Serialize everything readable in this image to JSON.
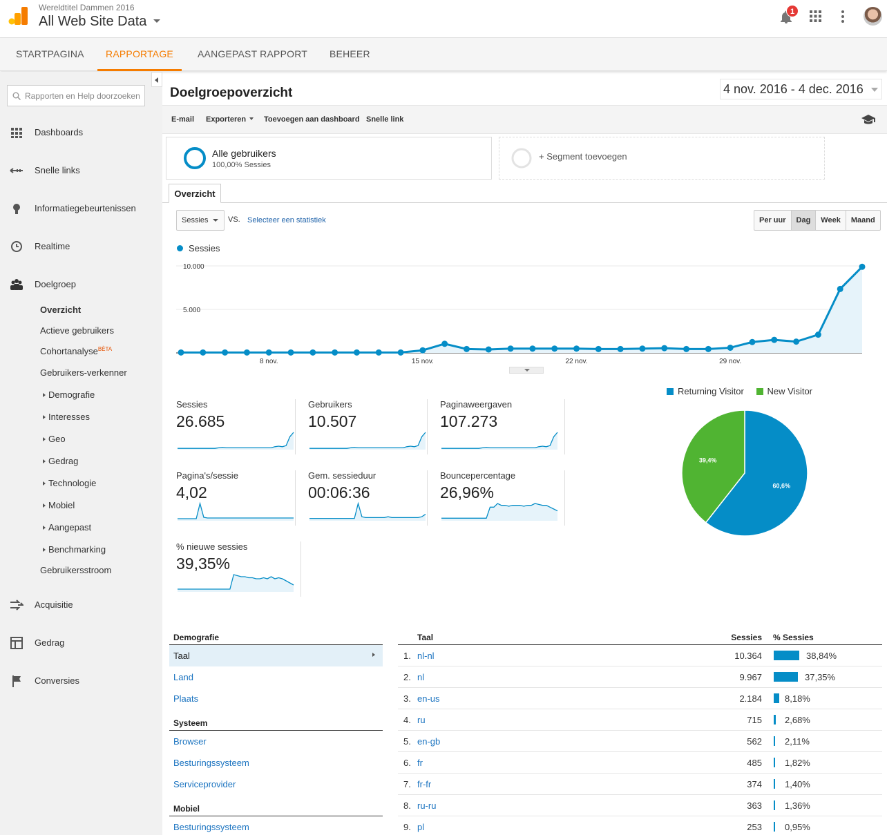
{
  "header": {
    "account": "Wereldtitel Dammen 2016",
    "property": "All Web Site Data",
    "notification_count": "1"
  },
  "nav": {
    "tabs": [
      {
        "label": "STARTPAGINA"
      },
      {
        "label": "RAPPORTAGE"
      },
      {
        "label": "AANGEPAST RAPPORT"
      },
      {
        "label": "BEHEER"
      }
    ],
    "active": "RAPPORTAGE"
  },
  "sidebar": {
    "search_placeholder": "Rapporten en Help doorzoeken",
    "items": [
      {
        "label": "Dashboards"
      },
      {
        "label": "Snelle links"
      },
      {
        "label": "Informatiegebeurtenissen"
      },
      {
        "label": "Realtime"
      },
      {
        "label": "Doelgroep"
      },
      {
        "label": "Acquisitie"
      },
      {
        "label": "Gedrag"
      },
      {
        "label": "Conversies"
      }
    ],
    "sub": {
      "overzicht": "Overzicht",
      "actieve": "Actieve gebruikers",
      "cohort": "Cohortanalyse",
      "beta": "BÈTA",
      "verkenner": "Gebruikers-verkenner",
      "demografie": "Demografie",
      "interesses": "Interesses",
      "geo": "Geo",
      "gedrag": "Gedrag",
      "technologie": "Technologie",
      "mobiel": "Mobiel",
      "aangepast": "Aangepast",
      "benchmarking": "Benchmarking",
      "stroom": "Gebruikersstroom"
    }
  },
  "main": {
    "title": "Doelgroepoverzicht",
    "date_range": "4 nov. 2016 - 4 dec. 2016",
    "toolbar": {
      "email": "E-mail",
      "export": "Exporteren",
      "dashboard": "Toevoegen aan dashboard",
      "link": "Snelle link"
    },
    "segment": {
      "name": "Alle gebruikers",
      "sub": "100,00% Sessies",
      "add": "+ Segment toevoegen"
    },
    "tab": "Overzicht",
    "metric_select": "Sessies",
    "vs": "VS.",
    "select_stat": "Selecteer een statistiek",
    "granularity": [
      "Per uur",
      "Dag",
      "Week",
      "Maand"
    ],
    "granularity_active": "Dag"
  },
  "chart_data": [
    {
      "type": "line",
      "series": [
        {
          "name": "Sessies",
          "values": [
            50,
            50,
            50,
            50,
            50,
            50,
            50,
            50,
            50,
            50,
            50,
            300,
            1050,
            450,
            400,
            500,
            500,
            500,
            500,
            450,
            450,
            500,
            550,
            450,
            450,
            600,
            1250,
            1500,
            1300,
            2100,
            7350,
            9900
          ]
        }
      ],
      "x": [
        "4 nov.",
        "5 nov.",
        "6 nov.",
        "7 nov.",
        "8 nov.",
        "9 nov.",
        "10 nov.",
        "11 nov.",
        "12 nov.",
        "13 nov.",
        "14 nov.",
        "15 nov.",
        "16 nov.",
        "17 nov.",
        "18 nov.",
        "19 nov.",
        "20 nov.",
        "21 nov.",
        "22 nov.",
        "23 nov.",
        "24 nov.",
        "25 nov.",
        "26 nov.",
        "27 nov.",
        "28 nov.",
        "29 nov.",
        "30 nov.",
        "1 dec.",
        "2 dec.",
        "3 dec.",
        "4 dec.",
        "5 dec."
      ],
      "x_ticks": [
        "8 nov.",
        "15 nov.",
        "22 nov.",
        "29 nov."
      ],
      "y_ticks": [
        "10.000",
        "5.000"
      ],
      "ylim": [
        0,
        10000
      ],
      "color": "#058dc7"
    },
    {
      "type": "pie",
      "categories": [
        "Returning Visitor",
        "New Visitor"
      ],
      "values": [
        60.6,
        39.4
      ],
      "labels": [
        "60,6%",
        "39,4%"
      ],
      "colors": [
        "#058dc7",
        "#50b432"
      ]
    }
  ],
  "scorecards": [
    {
      "label": "Sessies",
      "value": "26.685",
      "spark": [
        1,
        1,
        1,
        1,
        1,
        1,
        1,
        1,
        1,
        1,
        1,
        2,
        3,
        2,
        2,
        2,
        2,
        2,
        2,
        2,
        2,
        2,
        2,
        2,
        2,
        2,
        4,
        5,
        4,
        6,
        22,
        30
      ]
    },
    {
      "label": "Gebruikers",
      "value": "10.507",
      "spark": [
        1,
        1,
        1,
        1,
        1,
        1,
        1,
        1,
        1,
        1,
        1,
        2,
        3,
        2,
        2,
        2,
        2,
        2,
        2,
        2,
        2,
        2,
        2,
        2,
        2,
        2,
        4,
        5,
        4,
        6,
        22,
        30
      ]
    },
    {
      "label": "Paginaweergaven",
      "value": "107.273",
      "spark": [
        1,
        1,
        1,
        1,
        1,
        1,
        1,
        1,
        1,
        1,
        1,
        2,
        3,
        2,
        2,
        2,
        2,
        2,
        2,
        2,
        2,
        2,
        2,
        2,
        2,
        2,
        4,
        5,
        4,
        6,
        22,
        30
      ]
    },
    {
      "label": "Pagina's/sessie",
      "value": "4,02",
      "spark": [
        2,
        2,
        2,
        2,
        2,
        2,
        24,
        4,
        3,
        3,
        3,
        3,
        3,
        3,
        3,
        3,
        3,
        3,
        3,
        3,
        3,
        3,
        3,
        3,
        3,
        3,
        3,
        3,
        3,
        3,
        3,
        3
      ]
    },
    {
      "label": "Gem. sessieduur",
      "value": "00:06:36",
      "spark": [
        2,
        2,
        2,
        2,
        2,
        2,
        2,
        2,
        2,
        2,
        2,
        2,
        2,
        20,
        4,
        3,
        3,
        3,
        3,
        3,
        3,
        4,
        3,
        3,
        3,
        3,
        3,
        3,
        3,
        3,
        4,
        7
      ]
    },
    {
      "label": "Bouncepercentage",
      "value": "26,96%",
      "spark": [
        2,
        2,
        2,
        2,
        2,
        2,
        2,
        2,
        2,
        2,
        2,
        2,
        2,
        14,
        14,
        18,
        16,
        16,
        15,
        16,
        16,
        16,
        15,
        16,
        16,
        18,
        17,
        16,
        16,
        14,
        12,
        10
      ]
    },
    {
      "label": "% nieuwe sessies",
      "value": "39,35%",
      "spark": [
        2,
        2,
        2,
        2,
        2,
        2,
        2,
        2,
        2,
        2,
        2,
        2,
        2,
        2,
        2,
        16,
        15,
        14,
        14,
        13,
        13,
        12,
        12,
        13,
        12,
        14,
        12,
        13,
        12,
        10,
        8,
        6
      ]
    }
  ],
  "pie_legend": [
    "Returning Visitor",
    "New Visitor"
  ],
  "demo": {
    "demografie": "Demografie",
    "taal": "Taal",
    "land": "Land",
    "plaats": "Plaats",
    "systeem": "Systeem",
    "browser": "Browser",
    "os": "Besturingssysteem",
    "isp": "Serviceprovider",
    "mobiel": "Mobiel",
    "mos": "Besturingssysteem"
  },
  "table": {
    "headers": {
      "taal": "Taal",
      "sessies": "Sessies",
      "pct": "% Sessies"
    },
    "rows": [
      {
        "n": "1.",
        "lang": "nl-nl",
        "sessies": "10.364",
        "pct": "38,84%",
        "frac": 0.3884
      },
      {
        "n": "2.",
        "lang": "nl",
        "sessies": "9.967",
        "pct": "37,35%",
        "frac": 0.3735
      },
      {
        "n": "3.",
        "lang": "en-us",
        "sessies": "2.184",
        "pct": "8,18%",
        "frac": 0.0818
      },
      {
        "n": "4.",
        "lang": "ru",
        "sessies": "715",
        "pct": "2,68%",
        "frac": 0.0268
      },
      {
        "n": "5.",
        "lang": "en-gb",
        "sessies": "562",
        "pct": "2,11%",
        "frac": 0.0211
      },
      {
        "n": "6.",
        "lang": "fr",
        "sessies": "485",
        "pct": "1,82%",
        "frac": 0.0182
      },
      {
        "n": "7.",
        "lang": "fr-fr",
        "sessies": "374",
        "pct": "1,40%",
        "frac": 0.014
      },
      {
        "n": "8.",
        "lang": "ru-ru",
        "sessies": "363",
        "pct": "1,36%",
        "frac": 0.0136
      },
      {
        "n": "9.",
        "lang": "pl",
        "sessies": "253",
        "pct": "0,95%",
        "frac": 0.0095
      }
    ]
  }
}
